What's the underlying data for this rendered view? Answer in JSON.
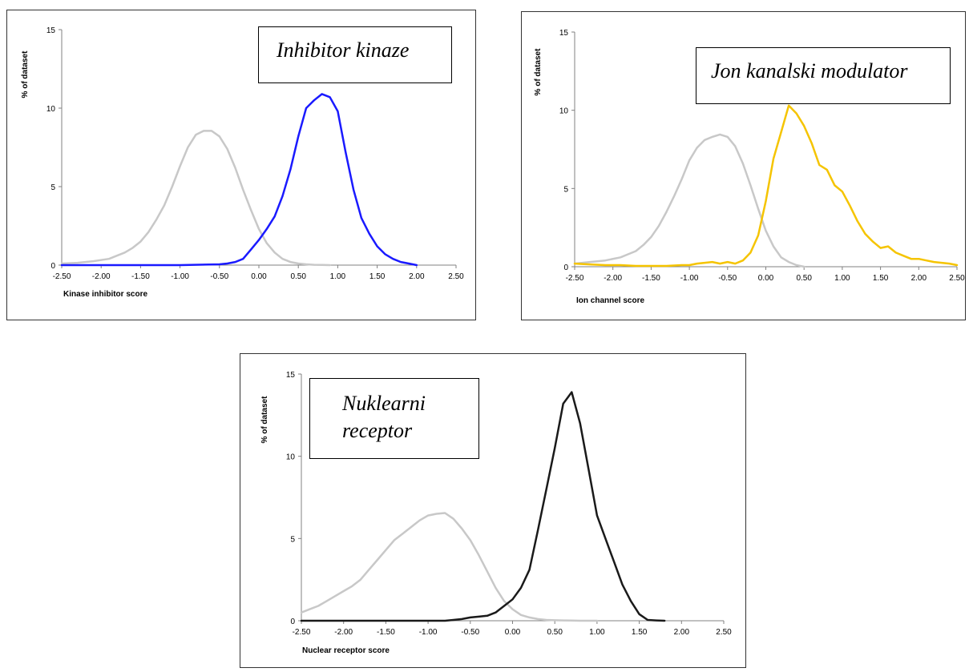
{
  "chart_data": [
    {
      "type": "line",
      "annotation": [
        "Inhibitor kinaze"
      ],
      "xlabel": "Kinase inhibitor score",
      "ylabel": "% of dataset",
      "xlim": [
        -2.5,
        2.5
      ],
      "ylim": [
        0,
        15
      ],
      "xticks": [
        "-2.50",
        "-2.00",
        "-1.50",
        "-1.00",
        "-0.50",
        "0.00",
        "0.50",
        "1.00",
        "1.50",
        "2.00",
        "2.50"
      ],
      "yticks": [
        "0",
        "5",
        "10",
        "15"
      ],
      "series": [
        {
          "color": "#c8c8c8",
          "x": [
            -2.5,
            -2.3,
            -2.1,
            -1.9,
            -1.8,
            -1.7,
            -1.6,
            -1.5,
            -1.4,
            -1.3,
            -1.2,
            -1.1,
            -1.0,
            -0.9,
            -0.8,
            -0.7,
            -0.6,
            -0.5,
            -0.4,
            -0.3,
            -0.2,
            -0.1,
            0.0,
            0.1,
            0.2,
            0.3,
            0.4,
            0.5,
            0.6,
            0.7,
            0.8,
            0.9
          ],
          "y": [
            0.1,
            0.15,
            0.25,
            0.4,
            0.6,
            0.8,
            1.1,
            1.5,
            2.1,
            2.9,
            3.8,
            5.0,
            6.3,
            7.5,
            8.3,
            8.55,
            8.55,
            8.2,
            7.4,
            6.2,
            4.8,
            3.5,
            2.3,
            1.4,
            0.8,
            0.4,
            0.2,
            0.1,
            0.05,
            0.02,
            0.01,
            0
          ]
        },
        {
          "color": "#1a1aff",
          "x": [
            -2.5,
            -1.0,
            -0.5,
            -0.4,
            -0.3,
            -0.2,
            -0.1,
            0.0,
            0.1,
            0.2,
            0.3,
            0.4,
            0.5,
            0.6,
            0.7,
            0.8,
            0.9,
            1.0,
            1.1,
            1.2,
            1.3,
            1.4,
            1.5,
            1.6,
            1.7,
            1.8,
            1.9,
            2.0
          ],
          "y": [
            0,
            0,
            0.05,
            0.1,
            0.2,
            0.4,
            1.0,
            1.6,
            2.3,
            3.1,
            4.4,
            6.1,
            8.2,
            10.0,
            10.5,
            10.9,
            10.7,
            9.8,
            7.2,
            4.8,
            3.0,
            2.0,
            1.2,
            0.7,
            0.4,
            0.2,
            0.1,
            0
          ]
        }
      ]
    },
    {
      "type": "line",
      "annotation": [
        "Jon kanalski modulator"
      ],
      "xlabel": "Ion channel score",
      "ylabel": "% of dataset",
      "xlim": [
        -2.5,
        2.5
      ],
      "ylim": [
        0,
        15
      ],
      "xticks": [
        "-2.50",
        "-2.00",
        "-1.50",
        "-1.00",
        "-0.50",
        "0.00",
        "0.50",
        "1.00",
        "1.50",
        "2.00",
        "2.50"
      ],
      "yticks": [
        "0",
        "5",
        "10",
        "15"
      ],
      "series": [
        {
          "color": "#c8c8c8",
          "x": [
            -2.5,
            -2.3,
            -2.1,
            -1.9,
            -1.8,
            -1.7,
            -1.6,
            -1.5,
            -1.4,
            -1.3,
            -1.2,
            -1.1,
            -1.0,
            -0.9,
            -0.8,
            -0.7,
            -0.6,
            -0.5,
            -0.4,
            -0.3,
            -0.2,
            -0.1,
            0.0,
            0.1,
            0.2,
            0.3,
            0.4,
            0.5
          ],
          "y": [
            0.2,
            0.3,
            0.4,
            0.6,
            0.8,
            1.0,
            1.4,
            1.9,
            2.6,
            3.5,
            4.5,
            5.6,
            6.8,
            7.6,
            8.1,
            8.3,
            8.45,
            8.3,
            7.7,
            6.6,
            5.2,
            3.7,
            2.3,
            1.3,
            0.6,
            0.3,
            0.1,
            0
          ]
        },
        {
          "color": "#f5c400",
          "x": [
            -2.5,
            -2.3,
            -2.1,
            -1.9,
            -1.7,
            -1.5,
            -1.3,
            -1.1,
            -1.0,
            -0.9,
            -0.8,
            -0.7,
            -0.6,
            -0.5,
            -0.4,
            -0.3,
            -0.2,
            -0.1,
            0.0,
            0.1,
            0.2,
            0.3,
            0.4,
            0.5,
            0.6,
            0.7,
            0.8,
            0.9,
            1.0,
            1.1,
            1.2,
            1.3,
            1.4,
            1.5,
            1.6,
            1.7,
            1.8,
            1.9,
            2.0,
            2.1,
            2.2,
            2.3,
            2.4,
            2.5
          ],
          "y": [
            0.2,
            0.15,
            0.1,
            0.1,
            0.05,
            0.05,
            0.05,
            0.1,
            0.1,
            0.2,
            0.25,
            0.3,
            0.2,
            0.3,
            0.2,
            0.4,
            0.9,
            2.0,
            4.2,
            6.9,
            8.6,
            10.3,
            9.8,
            9.0,
            7.9,
            6.5,
            6.2,
            5.2,
            4.8,
            3.9,
            2.9,
            2.1,
            1.6,
            1.2,
            1.3,
            0.9,
            0.7,
            0.5,
            0.5,
            0.4,
            0.3,
            0.25,
            0.2,
            0.1
          ]
        }
      ]
    },
    {
      "type": "line",
      "annotation": [
        "Nuklearni",
        "receptor"
      ],
      "xlabel": "Nuclear receptor score",
      "ylabel": "% of dataset",
      "xlim": [
        -2.5,
        2.5
      ],
      "ylim": [
        0,
        15
      ],
      "xticks": [
        "-2.50",
        "-2.00",
        "-1.50",
        "-1.00",
        "-0.50",
        "0.00",
        "0.50",
        "1.00",
        "1.50",
        "2.00",
        "2.50"
      ],
      "yticks": [
        "0",
        "5",
        "10",
        "15"
      ],
      "series": [
        {
          "color": "#c8c8c8",
          "x": [
            -2.5,
            -2.4,
            -2.3,
            -2.2,
            -2.1,
            -2.0,
            -1.9,
            -1.8,
            -1.7,
            -1.6,
            -1.5,
            -1.4,
            -1.3,
            -1.2,
            -1.1,
            -1.0,
            -0.9,
            -0.8,
            -0.7,
            -0.6,
            -0.5,
            -0.4,
            -0.3,
            -0.2,
            -0.1,
            0.0,
            0.1,
            0.2,
            0.3,
            0.4,
            0.5,
            0.6,
            0.7,
            0.8,
            1.0
          ],
          "y": [
            0.5,
            0.7,
            0.9,
            1.2,
            1.5,
            1.8,
            2.1,
            2.5,
            3.1,
            3.7,
            4.3,
            4.9,
            5.3,
            5.7,
            6.1,
            6.4,
            6.5,
            6.55,
            6.2,
            5.6,
            4.9,
            4.0,
            3.0,
            2.0,
            1.2,
            0.7,
            0.35,
            0.2,
            0.1,
            0.05,
            0.03,
            0.02,
            0.01,
            0,
            0
          ]
        },
        {
          "color": "#1a1a1a",
          "x": [
            -2.5,
            -1.0,
            -0.8,
            -0.7,
            -0.6,
            -0.5,
            -0.4,
            -0.3,
            -0.2,
            -0.1,
            0.0,
            0.1,
            0.2,
            0.3,
            0.4,
            0.5,
            0.6,
            0.7,
            0.8,
            0.9,
            1.0,
            1.1,
            1.2,
            1.3,
            1.4,
            1.5,
            1.6,
            1.7,
            1.8
          ],
          "y": [
            0,
            0,
            0,
            0.05,
            0.1,
            0.2,
            0.25,
            0.3,
            0.5,
            0.9,
            1.3,
            2.0,
            3.1,
            5.5,
            8.0,
            10.5,
            13.2,
            13.9,
            12.0,
            9.2,
            6.4,
            5.0,
            3.6,
            2.2,
            1.2,
            0.4,
            0.05,
            0.02,
            0
          ]
        }
      ]
    }
  ]
}
